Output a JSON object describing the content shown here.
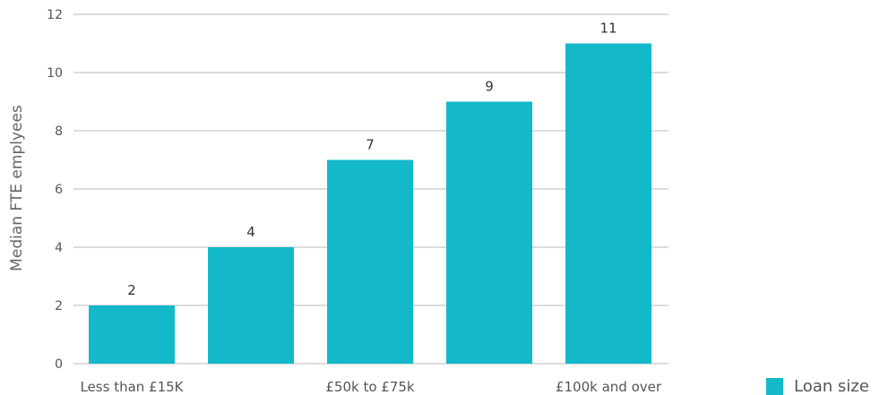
{
  "chart_data": {
    "type": "bar",
    "ylabel": "Median FTE emplyees",
    "ylim": [
      0,
      12
    ],
    "yticks": [
      0,
      2,
      4,
      6,
      8,
      10,
      12
    ],
    "categories": [
      "Less than £15K",
      "",
      "£50k to £75k",
      "",
      "£100k and over"
    ],
    "series": [
      {
        "name": "Loan size",
        "values": [
          2,
          4,
          7,
          9,
          11
        ],
        "color": "#13b8c9"
      }
    ],
    "data_labels": [
      "2",
      "4",
      "7",
      "9",
      "11"
    ],
    "grid": true,
    "legend_position": "bottom-right"
  }
}
